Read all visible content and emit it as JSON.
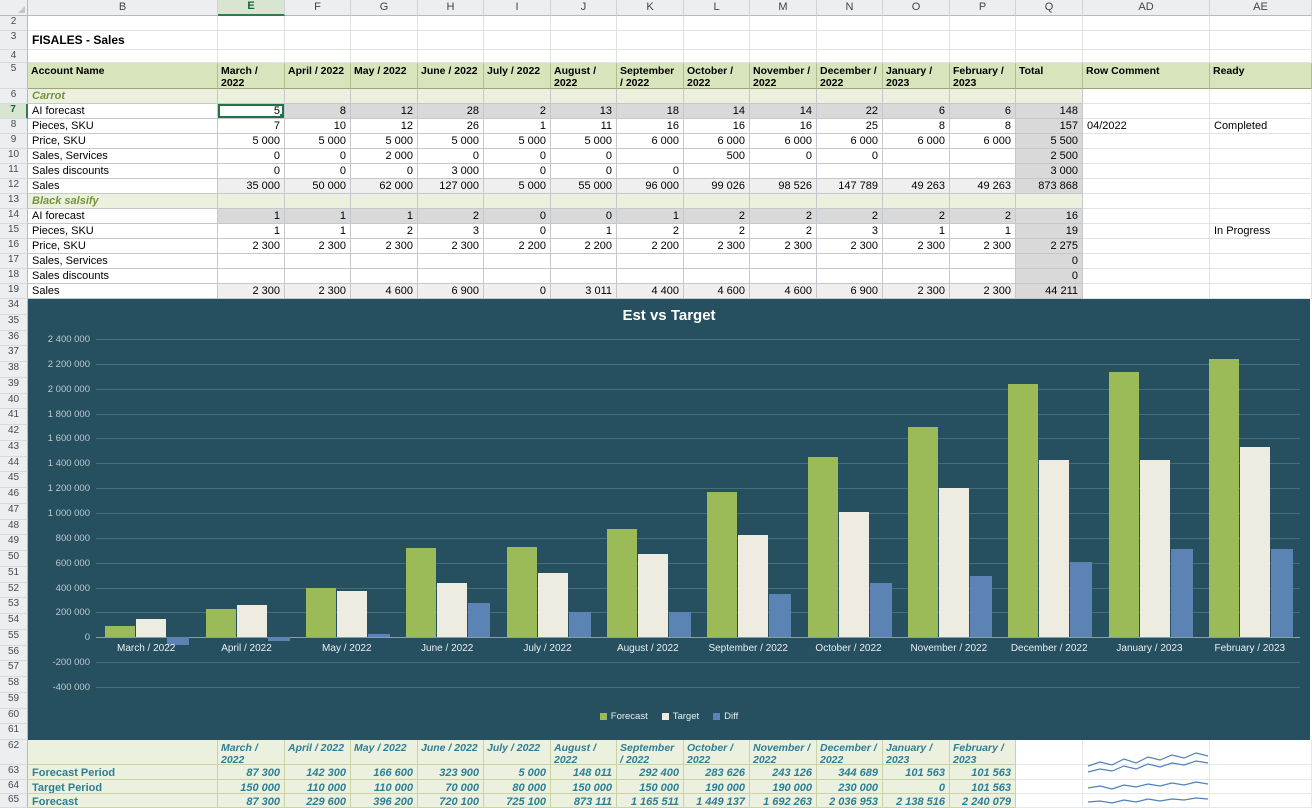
{
  "sheet": {
    "column_letters": [
      "B",
      "E",
      "F",
      "G",
      "H",
      "I",
      "J",
      "K",
      "L",
      "M",
      "N",
      "O",
      "P",
      "Q",
      "AD",
      "AE"
    ],
    "row_numbers_top": [
      "2",
      "3",
      "4",
      "5",
      "6",
      "7",
      "8",
      "9",
      "10",
      "11",
      "12",
      "13",
      "14",
      "15",
      "16",
      "17",
      "18",
      "19"
    ],
    "row_numbers_chart": [
      "34",
      "35",
      "36",
      "37",
      "38",
      "39",
      "40",
      "41",
      "42",
      "43",
      "44",
      "45",
      "46",
      "47",
      "48",
      "49",
      "50",
      "51",
      "52",
      "53",
      "54",
      "55",
      "56",
      "57",
      "58",
      "59",
      "60",
      "61"
    ],
    "row_numbers_bottom": [
      "62",
      "63",
      "64",
      "65"
    ],
    "selection": {
      "column": "E",
      "row": "7",
      "cell": "E7",
      "value": "5"
    }
  },
  "top_table": {
    "header": [
      "Account Name",
      "March / 2022",
      "April / 2022",
      "May / 2022",
      "June / 2022",
      "July / 2022",
      "August / 2022",
      "September / 2022",
      "October / 2022",
      "November / 2022",
      "December / 2022",
      "January / 2023",
      "February / 2023",
      "Total",
      "Row Comment",
      "Ready"
    ],
    "rows": [
      {
        "style": "blank"
      },
      {
        "style": "title",
        "b": "FISALES - Sales"
      },
      {
        "style": "blank"
      },
      {
        "style": "header"
      },
      {
        "style": "section",
        "b": "Carrot"
      },
      {
        "style": "gray",
        "b": "AI forecast",
        "active_cell": 0,
        "cells": [
          "5",
          "8",
          "12",
          "28",
          "2",
          "13",
          "18",
          "14",
          "14",
          "22",
          "6",
          "6"
        ],
        "total": "148"
      },
      {
        "style": "data",
        "b": "Pieces, SKU",
        "cells": [
          "7",
          "10",
          "12",
          "26",
          "1",
          "11",
          "16",
          "16",
          "16",
          "25",
          "8",
          "8"
        ],
        "total": "157",
        "comment": "04/2022",
        "ready": "Completed"
      },
      {
        "style": "data",
        "b": "Price, SKU",
        "cells": [
          "5 000",
          "5 000",
          "5 000",
          "5 000",
          "5 000",
          "5 000",
          "6 000",
          "6 000",
          "6 000",
          "6 000",
          "6 000",
          "6 000"
        ],
        "total": "5 500"
      },
      {
        "style": "data",
        "b": "Sales, Services",
        "cells": [
          "0",
          "0",
          "2 000",
          "0",
          "0",
          "0",
          "",
          "500",
          "0",
          "0",
          "",
          ""
        ],
        "total": "2 500"
      },
      {
        "style": "data",
        "b": "Sales discounts",
        "cells": [
          "0",
          "0",
          "0",
          "3 000",
          "0",
          "0",
          "0",
          "",
          "",
          "",
          "",
          ""
        ],
        "total": "3 000"
      },
      {
        "style": "sum",
        "b": "Sales",
        "cells": [
          "35 000",
          "50 000",
          "62 000",
          "127 000",
          "5 000",
          "55 000",
          "96 000",
          "99 026",
          "98 526",
          "147 789",
          "49 263",
          "49 263"
        ],
        "total": "873 868"
      },
      {
        "style": "section",
        "b": "Black salsify"
      },
      {
        "style": "gray",
        "b": "AI forecast",
        "cells": [
          "1",
          "1",
          "1",
          "2",
          "0",
          "0",
          "1",
          "2",
          "2",
          "2",
          "2",
          "2"
        ],
        "total": "16"
      },
      {
        "style": "data",
        "b": "Pieces, SKU",
        "cells": [
          "1",
          "1",
          "2",
          "3",
          "0",
          "1",
          "2",
          "2",
          "2",
          "3",
          "1",
          "1"
        ],
        "total": "19",
        "ready": "In Progress"
      },
      {
        "style": "data",
        "b": "Price, SKU",
        "cells": [
          "2 300",
          "2 300",
          "2 300",
          "2 300",
          "2 200",
          "2 200",
          "2 200",
          "2 300",
          "2 300",
          "2 300",
          "2 300",
          "2 300"
        ],
        "total": "2 275"
      },
      {
        "style": "data",
        "b": "Sales, Services",
        "cells": [
          "",
          "",
          "",
          "",
          "",
          "",
          "",
          "",
          "",
          "",
          "",
          ""
        ],
        "total": "0"
      },
      {
        "style": "data",
        "b": "Sales discounts",
        "cells": [
          "",
          "",
          "",
          "",
          "",
          "",
          "",
          "",
          "",
          "",
          "",
          ""
        ],
        "total": "0"
      },
      {
        "style": "sum",
        "b": "Sales",
        "cells": [
          "2 300",
          "2 300",
          "4 600",
          "6 900",
          "0",
          "3 011",
          "4 400",
          "4 600",
          "4 600",
          "6 900",
          "2 300",
          "2 300"
        ],
        "total": "44 211"
      }
    ]
  },
  "chart_data": {
    "type": "bar",
    "title": "Est vs Target",
    "categories": [
      "March / 2022",
      "April / 2022",
      "May / 2022",
      "June / 2022",
      "July / 2022",
      "August / 2022",
      "September / 2022",
      "October / 2022",
      "November / 2022",
      "December / 2022",
      "January / 2023",
      "February / 2023"
    ],
    "series": [
      {
        "name": "Forecast",
        "color": "#9bbb59",
        "values": [
          87300,
          229600,
          396200,
          720100,
          725100,
          873111,
          1165511,
          1449137,
          1692263,
          2036953,
          2138516,
          2240079
        ]
      },
      {
        "name": "Target",
        "color": "#eeece1",
        "values": [
          150000,
          260000,
          370000,
          440000,
          520000,
          670000,
          820000,
          1010000,
          1200000,
          1430000,
          1430000,
          1531563
        ]
      },
      {
        "name": "Diff",
        "color": "#5b84b5",
        "values": [
          -62700,
          -30400,
          26200,
          280100,
          205100,
          203111,
          345511,
          439137,
          492263,
          606953,
          708516,
          708516
        ]
      }
    ],
    "ylim": [
      -400000,
      2400000
    ],
    "ytick_step": 200000,
    "grid": true,
    "legend_position": "bottom"
  },
  "bottom_table": {
    "header": [
      "March / 2022",
      "April / 2022",
      "May / 2022",
      "June / 2022",
      "July / 2022",
      "August / 2022",
      "September / 2022",
      "October / 2022",
      "November / 2022",
      "December / 2022",
      "January / 2023",
      "February / 2023"
    ],
    "rows": [
      {
        "label": "Forecast Period",
        "values": [
          "87 300",
          "142 300",
          "166 600",
          "323 900",
          "5 000",
          "148 011",
          "292 400",
          "283 626",
          "243 126",
          "344 689",
          "101 563",
          "101 563"
        ]
      },
      {
        "label": "Target Period",
        "values": [
          "150 000",
          "110 000",
          "110 000",
          "70 000",
          "80 000",
          "150 000",
          "150 000",
          "190 000",
          "190 000",
          "230 000",
          "0",
          "101 563"
        ]
      },
      {
        "label": "Forecast",
        "values": [
          "87 300",
          "229 600",
          "396 200",
          "720 100",
          "725 100",
          "873 111",
          "1 165 511",
          "1 449 137",
          "1 692 263",
          "2 036 953",
          "2 138 516",
          "2 240 079"
        ]
      }
    ]
  },
  "colors": {
    "header_fill": "#d7e4bc",
    "section_fill": "#ebf1de",
    "section_text": "#76933c",
    "gray_fill": "#d9d9d9",
    "chart_bg": "#26505f",
    "teal_text": "#2c7f95",
    "selection_green": "#217346",
    "sparkline_blue": "#4f81bd"
  }
}
